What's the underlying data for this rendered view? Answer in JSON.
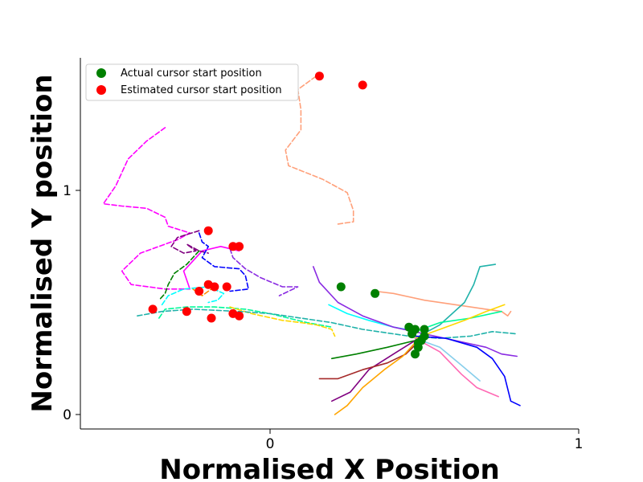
{
  "chart_data": {
    "type": "line",
    "title": "",
    "xlabel": "Normalised X Position",
    "ylabel": "Normalised Y position",
    "xlim": [
      -0.62,
      1.0
    ],
    "ylim": [
      -0.07,
      1.6
    ],
    "xticks": [
      {
        "value": 0,
        "label": "0"
      },
      {
        "value": 1,
        "label": "1"
      }
    ],
    "yticks": [
      {
        "value": 0,
        "label": "0"
      },
      {
        "value": 1,
        "label": "1"
      }
    ],
    "grid": false,
    "legend": {
      "placement": "upper-left",
      "entries": [
        {
          "label": "Actual cursor start position",
          "color": "#008000"
        },
        {
          "label": "Estimated cursor start position",
          "color": "#ff0000"
        }
      ]
    },
    "series": [
      {
        "color": "#ff00ff",
        "style": "dashed",
        "points": [
          [
            -0.34,
            1.28
          ],
          [
            -0.4,
            1.22
          ],
          [
            -0.46,
            1.14
          ],
          [
            -0.5,
            1.02
          ],
          [
            -0.54,
            0.94
          ],
          [
            -0.48,
            0.93
          ],
          [
            -0.4,
            0.92
          ],
          [
            -0.34,
            0.88
          ],
          [
            -0.33,
            0.84
          ],
          [
            -0.26,
            0.81
          ],
          [
            -0.3,
            0.78
          ],
          [
            -0.42,
            0.72
          ],
          [
            -0.48,
            0.64
          ],
          [
            -0.45,
            0.58
          ],
          [
            -0.34,
            0.56
          ],
          [
            -0.26,
            0.56
          ]
        ]
      },
      {
        "color": "#ff00ff",
        "style": "solid",
        "points": [
          [
            -0.26,
            0.56
          ],
          [
            -0.28,
            0.64
          ],
          [
            -0.22,
            0.73
          ],
          [
            -0.16,
            0.75
          ],
          [
            -0.1,
            0.73
          ]
        ]
      },
      {
        "color": "#800080",
        "style": "dashed",
        "points": [
          [
            -0.23,
            0.82
          ],
          [
            -0.3,
            0.79
          ],
          [
            -0.32,
            0.75
          ],
          [
            -0.28,
            0.72
          ],
          [
            -0.24,
            0.73
          ],
          [
            -0.27,
            0.76
          ],
          [
            -0.23,
            0.73
          ],
          [
            -0.2,
            0.72
          ]
        ]
      },
      {
        "color": "#0000ff",
        "style": "dashed",
        "points": [
          [
            -0.23,
            0.81
          ],
          [
            -0.22,
            0.77
          ],
          [
            -0.2,
            0.75
          ],
          [
            -0.22,
            0.7
          ],
          [
            -0.18,
            0.66
          ],
          [
            -0.1,
            0.65
          ],
          [
            -0.08,
            0.62
          ],
          [
            -0.07,
            0.56
          ],
          [
            -0.13,
            0.55
          ]
        ]
      },
      {
        "color": "#8a2be2",
        "style": "dashed",
        "points": [
          [
            -0.13,
            0.74
          ],
          [
            -0.12,
            0.7
          ],
          [
            -0.08,
            0.65
          ],
          [
            -0.03,
            0.61
          ],
          [
            0.04,
            0.57
          ],
          [
            0.09,
            0.57
          ],
          [
            0.03,
            0.53
          ]
        ]
      },
      {
        "color": "#008000",
        "style": "dashed",
        "points": [
          [
            -0.23,
            0.73
          ],
          [
            -0.27,
            0.67
          ],
          [
            -0.31,
            0.63
          ],
          [
            -0.33,
            0.58
          ],
          [
            -0.34,
            0.54
          ],
          [
            -0.36,
            0.51
          ]
        ]
      },
      {
        "color": "#ff8c00",
        "style": "dashed",
        "points": [
          [
            -0.25,
            0.56
          ],
          [
            -0.22,
            0.53
          ],
          [
            -0.2,
            0.55
          ],
          [
            -0.18,
            0.57
          ]
        ]
      },
      {
        "color": "#ffa07a",
        "style": "dashed",
        "points": [
          [
            0.22,
            0.85
          ],
          [
            0.27,
            0.86
          ],
          [
            0.27,
            0.91
          ],
          [
            0.25,
            0.99
          ],
          [
            0.17,
            1.05
          ],
          [
            0.06,
            1.11
          ],
          [
            0.05,
            1.18
          ],
          [
            0.1,
            1.27
          ],
          [
            0.1,
            1.36
          ],
          [
            0.09,
            1.45
          ],
          [
            0.16,
            1.52
          ]
        ]
      },
      {
        "color": "#00ffff",
        "style": "dashed",
        "points": [
          [
            -0.35,
            0.49
          ],
          [
            -0.33,
            0.53
          ],
          [
            -0.28,
            0.56
          ],
          [
            -0.2,
            0.57
          ],
          [
            -0.15,
            0.54
          ],
          [
            -0.17,
            0.51
          ],
          [
            -0.2,
            0.5
          ]
        ]
      },
      {
        "color": "#00fa9a",
        "style": "dashed",
        "points": [
          [
            -0.36,
            0.43
          ],
          [
            -0.34,
            0.47
          ],
          [
            -0.27,
            0.48
          ],
          [
            -0.18,
            0.48
          ],
          [
            -0.08,
            0.47
          ],
          [
            0.0,
            0.45
          ],
          [
            0.06,
            0.43
          ],
          [
            0.12,
            0.41
          ],
          [
            0.2,
            0.39
          ]
        ]
      },
      {
        "color": "#ffd700",
        "style": "dashed",
        "points": [
          [
            -0.13,
            0.48
          ],
          [
            -0.06,
            0.45
          ],
          [
            0.04,
            0.42
          ],
          [
            0.1,
            0.41
          ],
          [
            0.15,
            0.4
          ],
          [
            0.2,
            0.38
          ],
          [
            0.21,
            0.35
          ]
        ]
      },
      {
        "color": "#20b2aa",
        "style": "dashed",
        "points": [
          [
            -0.43,
            0.44
          ],
          [
            -0.35,
            0.46
          ],
          [
            -0.25,
            0.47
          ],
          [
            -0.1,
            0.46
          ],
          [
            0.0,
            0.45
          ],
          [
            0.1,
            0.43
          ],
          [
            0.2,
            0.41
          ],
          [
            0.3,
            0.38
          ],
          [
            0.45,
            0.35
          ],
          [
            0.55,
            0.34
          ],
          [
            0.65,
            0.35
          ],
          [
            0.72,
            0.37
          ],
          [
            0.8,
            0.36
          ]
        ]
      },
      {
        "color": "#ffa07a",
        "style": "solid",
        "points": [
          [
            0.34,
            0.55
          ],
          [
            0.4,
            0.54
          ],
          [
            0.5,
            0.51
          ],
          [
            0.6,
            0.49
          ],
          [
            0.7,
            0.47
          ],
          [
            0.75,
            0.46
          ],
          [
            0.77,
            0.44
          ],
          [
            0.78,
            0.46
          ]
        ]
      },
      {
        "color": "#00ffff",
        "style": "solid",
        "points": [
          [
            0.19,
            0.49
          ],
          [
            0.25,
            0.45
          ],
          [
            0.32,
            0.42
          ],
          [
            0.4,
            0.39
          ],
          [
            0.48,
            0.37
          ]
        ]
      },
      {
        "color": "#8a2be2",
        "style": "solid",
        "points": [
          [
            0.14,
            0.66
          ],
          [
            0.16,
            0.59
          ],
          [
            0.22,
            0.5
          ],
          [
            0.3,
            0.44
          ],
          [
            0.4,
            0.39
          ],
          [
            0.5,
            0.36
          ],
          [
            0.6,
            0.33
          ],
          [
            0.7,
            0.3
          ],
          [
            0.75,
            0.27
          ],
          [
            0.8,
            0.26
          ]
        ]
      },
      {
        "color": "#20b2aa",
        "style": "solid",
        "points": [
          [
            0.47,
            0.34
          ],
          [
            0.55,
            0.4
          ],
          [
            0.63,
            0.5
          ],
          [
            0.66,
            0.58
          ],
          [
            0.68,
            0.66
          ],
          [
            0.73,
            0.67
          ]
        ]
      },
      {
        "color": "#00fa9a",
        "style": "solid",
        "points": [
          [
            0.47,
            0.37
          ],
          [
            0.55,
            0.41
          ],
          [
            0.65,
            0.43
          ],
          [
            0.75,
            0.46
          ]
        ]
      },
      {
        "color": "#ffd700",
        "style": "solid",
        "points": [
          [
            0.47,
            0.34
          ],
          [
            0.55,
            0.38
          ],
          [
            0.63,
            0.42
          ],
          [
            0.7,
            0.46
          ],
          [
            0.76,
            0.49
          ]
        ]
      },
      {
        "color": "#008000",
        "style": "solid",
        "points": [
          [
            0.2,
            0.25
          ],
          [
            0.28,
            0.27
          ],
          [
            0.38,
            0.3
          ],
          [
            0.47,
            0.33
          ]
        ]
      },
      {
        "color": "#800080",
        "style": "solid",
        "points": [
          [
            0.2,
            0.06
          ],
          [
            0.26,
            0.1
          ],
          [
            0.32,
            0.2
          ],
          [
            0.4,
            0.27
          ],
          [
            0.47,
            0.33
          ]
        ]
      },
      {
        "color": "#a52a2a",
        "style": "solid",
        "points": [
          [
            0.16,
            0.16
          ],
          [
            0.22,
            0.16
          ],
          [
            0.3,
            0.2
          ],
          [
            0.38,
            0.23
          ],
          [
            0.44,
            0.27
          ],
          [
            0.47,
            0.31
          ]
        ]
      },
      {
        "color": "#ffa500",
        "style": "solid",
        "points": [
          [
            0.21,
            0.0
          ],
          [
            0.25,
            0.04
          ],
          [
            0.3,
            0.12
          ],
          [
            0.37,
            0.2
          ],
          [
            0.43,
            0.26
          ],
          [
            0.47,
            0.32
          ]
        ]
      },
      {
        "color": "#0000ff",
        "style": "solid",
        "points": [
          [
            0.47,
            0.35
          ],
          [
            0.57,
            0.34
          ],
          [
            0.67,
            0.3
          ],
          [
            0.72,
            0.25
          ],
          [
            0.76,
            0.17
          ],
          [
            0.78,
            0.06
          ],
          [
            0.81,
            0.04
          ]
        ]
      },
      {
        "color": "#87ceeb",
        "style": "solid",
        "points": [
          [
            0.47,
            0.34
          ],
          [
            0.55,
            0.3
          ],
          [
            0.62,
            0.22
          ],
          [
            0.68,
            0.15
          ]
        ]
      },
      {
        "color": "#ff69b4",
        "style": "solid",
        "points": [
          [
            0.47,
            0.34
          ],
          [
            0.55,
            0.28
          ],
          [
            0.62,
            0.18
          ],
          [
            0.67,
            0.12
          ],
          [
            0.74,
            0.08
          ]
        ]
      }
    ],
    "actual_start_points": [
      [
        0.23,
        0.57
      ],
      [
        0.34,
        0.54
      ],
      [
        0.45,
        0.39
      ],
      [
        0.47,
        0.38
      ],
      [
        0.5,
        0.38
      ],
      [
        0.46,
        0.36
      ],
      [
        0.49,
        0.33
      ],
      [
        0.48,
        0.3
      ],
      [
        0.47,
        0.27
      ],
      [
        0.48,
        0.32
      ],
      [
        0.5,
        0.35
      ]
    ],
    "estimated_start_points": [
      [
        0.16,
        1.51
      ],
      [
        0.3,
        1.47
      ],
      [
        -0.2,
        0.82
      ],
      [
        -0.12,
        0.75
      ],
      [
        -0.1,
        0.75
      ],
      [
        -0.2,
        0.58
      ],
      [
        -0.18,
        0.57
      ],
      [
        -0.14,
        0.57
      ],
      [
        -0.23,
        0.55
      ],
      [
        -0.38,
        0.47
      ],
      [
        -0.27,
        0.46
      ],
      [
        -0.19,
        0.43
      ],
      [
        -0.12,
        0.45
      ],
      [
        -0.1,
        0.44
      ]
    ]
  }
}
